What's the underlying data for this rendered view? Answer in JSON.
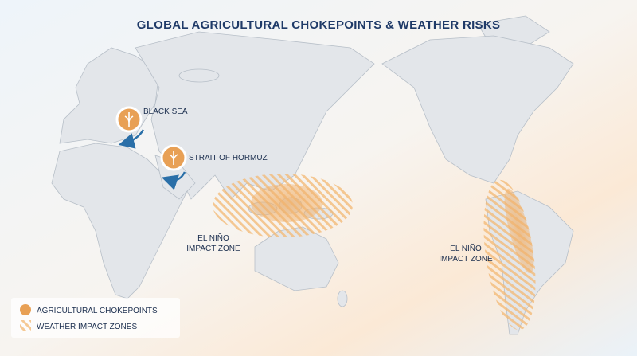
{
  "title": "GLOBAL AGRICULTURAL CHOKEPOINTS & WEATHER RISKS",
  "chokepoints": [
    {
      "label": "BLACK SEA"
    },
    {
      "label": "STRAIT OF HORMUZ"
    }
  ],
  "impact_zones": [
    {
      "label_lines": [
        "EL NIÑO",
        "IMPACT ZONE"
      ]
    },
    {
      "label_lines": [
        "EL NIÑO",
        "IMPACT ZONE"
      ]
    }
  ],
  "legend": {
    "items": [
      "AGRICULTURAL CHOKEPOINTS",
      "WEATHER IMPACT ZONES"
    ]
  }
}
